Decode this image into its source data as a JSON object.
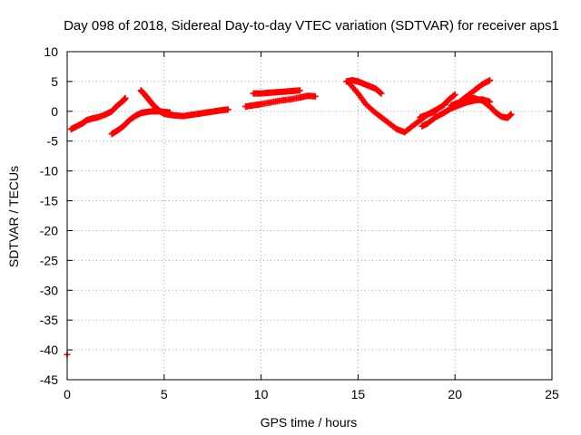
{
  "chart_data": {
    "type": "scatter",
    "title": "Day 098 of 2018, Sidereal Day-to-day VTEC variation (SDTVAR) for receiver aps1",
    "xlabel": "GPS time / hours",
    "ylabel": "SDTVAR / TECUs",
    "xlim": [
      0,
      25
    ],
    "ylim": [
      -45,
      10
    ],
    "xticks": [
      "0",
      "5",
      "10",
      "15",
      "20",
      "25"
    ],
    "yticks": [
      "10",
      "5",
      "0",
      "-5",
      "-10",
      "-15",
      "-20",
      "-25",
      "-30",
      "-35",
      "-40",
      "-45"
    ],
    "grid": true,
    "marker": "plus",
    "color": "#ff0000",
    "series": [
      {
        "x": [
          0.2,
          0.5,
          0.8,
          1.0,
          1.3,
          1.6,
          2.0,
          2.3,
          2.6,
          2.9,
          3.0
        ],
        "y": [
          -3.0,
          -2.5,
          -2.0,
          -1.5,
          -1.2,
          -1.0,
          -0.5,
          0.0,
          1.0,
          1.8,
          2.2
        ]
      },
      {
        "x": [
          2.3,
          2.6,
          2.9,
          3.2,
          3.5,
          3.8,
          4.1,
          4.4,
          4.7,
          5.0,
          5.3
        ],
        "y": [
          -3.8,
          -3.2,
          -2.5,
          -1.5,
          -0.8,
          -0.3,
          -0.1,
          0.0,
          0.0,
          -0.1,
          -0.2
        ]
      },
      {
        "x": [
          3.8,
          4.0,
          4.2,
          4.4,
          4.6,
          4.8,
          5.0,
          5.3,
          5.6,
          6.0,
          6.4,
          6.8,
          7.2,
          7.6,
          8.0,
          8.3
        ],
        "y": [
          3.5,
          2.8,
          2.0,
          1.2,
          0.5,
          0.0,
          -0.4,
          -0.6,
          -0.7,
          -0.8,
          -0.6,
          -0.4,
          -0.2,
          0.0,
          0.2,
          0.3
        ]
      },
      {
        "x": [
          9.2,
          9.6,
          10.0,
          10.5,
          11.0,
          11.5,
          12.0,
          12.4,
          12.8
        ],
        "y": [
          0.8,
          1.0,
          1.2,
          1.5,
          1.8,
          2.0,
          2.3,
          2.6,
          2.5
        ]
      },
      {
        "x": [
          9.6,
          10.0,
          10.4,
          10.8,
          11.2,
          11.6,
          12.0
        ],
        "y": [
          3.0,
          3.0,
          3.1,
          3.2,
          3.3,
          3.4,
          3.5
        ]
      },
      {
        "x": [
          14.4,
          14.7,
          15.0,
          15.3,
          15.6,
          15.9,
          16.2
        ],
        "y": [
          5.0,
          5.2,
          5.0,
          4.6,
          4.2,
          3.8,
          3.0
        ]
      },
      {
        "x": [
          14.6,
          15.0,
          15.4,
          15.8,
          16.2,
          16.6,
          17.0,
          17.4,
          17.8,
          18.2,
          18.6,
          19.0
        ],
        "y": [
          4.5,
          3.0,
          1.2,
          0.0,
          -1.0,
          -2.0,
          -3.0,
          -3.5,
          -2.5,
          -1.5,
          -0.5,
          0.0
        ]
      },
      {
        "x": [
          18.2,
          18.6,
          19.0,
          19.4,
          19.7,
          20.0
        ],
        "y": [
          -1.0,
          -0.5,
          0.2,
          1.0,
          2.0,
          2.8
        ]
      },
      {
        "x": [
          18.3,
          18.6,
          19.0,
          19.4,
          19.8,
          20.2,
          20.6,
          21.0,
          21.4,
          21.8
        ],
        "y": [
          -2.5,
          -2.0,
          -1.0,
          -0.3,
          0.5,
          1.0,
          1.5,
          1.8,
          2.0,
          1.6
        ]
      },
      {
        "x": [
          19.4,
          19.8,
          20.2,
          20.6,
          21.0,
          21.4,
          21.8
        ],
        "y": [
          -0.3,
          0.5,
          1.5,
          2.5,
          3.5,
          4.5,
          5.2
        ]
      },
      {
        "x": [
          19.8,
          20.2,
          20.6,
          21.0,
          21.4,
          21.8,
          22.1,
          22.4,
          22.7,
          22.9
        ],
        "y": [
          1.0,
          1.5,
          2.0,
          2.2,
          1.8,
          0.8,
          -0.2,
          -0.9,
          -1.1,
          -0.5
        ]
      },
      {
        "x": [
          0.0
        ],
        "y": [
          -40.8
        ]
      }
    ]
  }
}
